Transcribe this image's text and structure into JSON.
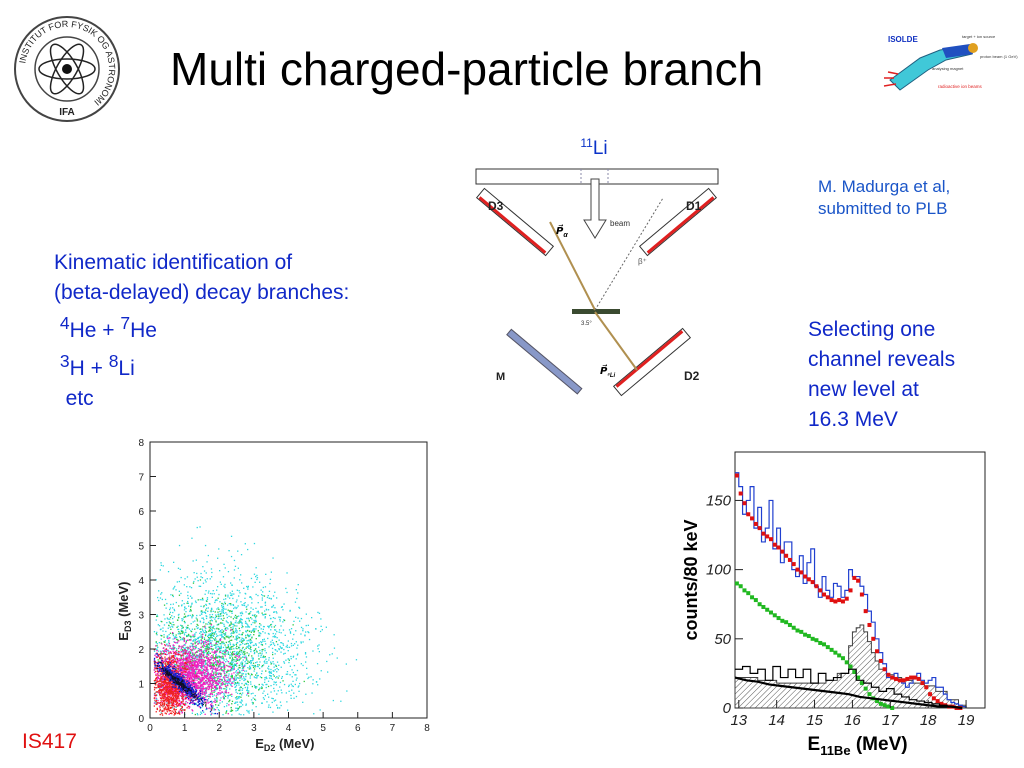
{
  "slide": {
    "title": "Multi charged-particle branch",
    "logo_left_text": "INSTITUT FOR FYSIK OG ASTRONOMI",
    "logo_left_abbrev": "IFA",
    "logo_right": {
      "title": "ISOLDE",
      "labels": [
        "target + ion source",
        "analysing magnet",
        "proton beam (1 GeV)",
        "radioactive ion beams"
      ]
    },
    "citation": [
      "M. Madurga et al,",
      "submitted to PLB"
    ],
    "kinematic": {
      "line1": "Kinematic identification of",
      "line2": "(beta-delayed) decay branches:",
      "branch1": {
        "m1": "4",
        "e1": "He + ",
        "m2": "7",
        "e2": "He"
      },
      "branch2": {
        "m1": "3",
        "e1": "H + ",
        "m2": "8",
        "e2": "Li"
      },
      "etc": "etc"
    },
    "selecting": [
      "Selecting one",
      "channel reveals",
      "new level at",
      "16.3 MeV"
    ],
    "experiment_id": "IS417"
  },
  "setup": {
    "beam_nucleus_mass": "11",
    "beam_nucleus_element": "Li",
    "detectors": [
      "D3",
      "D1",
      "M",
      "D2"
    ],
    "beam_label": "beam",
    "p_alpha": "P⃗",
    "p_alpha_sub": "α",
    "p_li": "P⃗",
    "p_li_sub": "⁸Li",
    "beta_label": "β⁺",
    "angle_label": "3.5°"
  },
  "chart_data": [
    {
      "type": "scatter",
      "xlabel": "E",
      "xlabel_sub": "D2",
      "xlabel_unit": "(MeV)",
      "ylabel": "E",
      "ylabel_sub": "D3",
      "ylabel_unit": "(MeV)",
      "xlim": [
        0,
        8
      ],
      "ylim": [
        0,
        8
      ],
      "xticks": [
        "0",
        "1",
        "2",
        "3",
        "4",
        "5",
        "6",
        "7",
        "8"
      ],
      "yticks": [
        "0",
        "1",
        "2",
        "3",
        "4",
        "5",
        "6",
        "7",
        "8"
      ],
      "colors": {
        "cyan": "#2ed8e0",
        "green": "#30c840",
        "magenta": "#f020c0",
        "red": "#f02020",
        "blue": "#1020d0",
        "black": "#101020"
      },
      "clusters": [
        {
          "color": "cyan",
          "cx": 2.0,
          "cy": 1.9,
          "sx": 1.25,
          "sy": 1.1,
          "n": 2400
        },
        {
          "color": "green",
          "cx": 1.7,
          "cy": 1.8,
          "sx": 0.8,
          "sy": 0.75,
          "n": 700
        },
        {
          "color": "magenta",
          "cx": 1.1,
          "cy": 1.25,
          "sx": 0.55,
          "sy": 0.45,
          "n": 1700
        },
        {
          "color": "red",
          "cx": 0.55,
          "cy": 0.9,
          "sx": 0.25,
          "sy": 0.45,
          "n": 900
        },
        {
          "color": "blue",
          "cx": 0.85,
          "cy": 1.05,
          "sx": 0.35,
          "sy": 0.12,
          "n": 500,
          "diag": true
        },
        {
          "color": "black",
          "cx": 0.75,
          "cy": 1.1,
          "sx": 0.3,
          "sy": 0.06,
          "n": 160,
          "diag": true
        }
      ]
    },
    {
      "type": "line",
      "xlabel": "E",
      "xlabel_sub": "11Be",
      "xlabel_unit": "(MeV)",
      "ylabel": "counts/80 keV",
      "xlim": [
        12.9,
        19.5
      ],
      "ylim": [
        0,
        185
      ],
      "xticks": [
        "13",
        "14",
        "15",
        "16",
        "17",
        "18",
        "19"
      ],
      "yticks": [
        "0",
        "50",
        "100",
        "150"
      ],
      "series": [
        {
          "color": "#2040d0",
          "style": "step",
          "x": [
            12.9,
            13.0,
            13.1,
            13.2,
            13.3,
            13.4,
            13.5,
            13.6,
            13.7,
            13.8,
            13.9,
            14.0,
            14.1,
            14.2,
            14.3,
            14.4,
            14.5,
            14.6,
            14.7,
            14.8,
            14.9,
            15.0,
            15.1,
            15.2,
            15.3,
            15.4,
            15.5,
            15.6,
            15.7,
            15.8,
            15.9,
            16.0,
            16.1,
            16.2,
            16.3,
            16.4,
            16.5,
            16.6,
            16.7,
            16.8,
            16.9,
            17.0,
            17.1,
            17.2,
            17.3,
            17.4,
            17.5,
            17.6,
            17.7,
            17.8,
            17.9,
            18.0,
            18.1,
            18.2,
            18.3,
            18.4,
            18.5,
            18.6,
            18.7,
            18.8,
            18.9,
            19.0
          ],
          "y": [
            170,
            160,
            140,
            150,
            160,
            130,
            145,
            120,
            130,
            150,
            115,
            130,
            105,
            120,
            120,
            100,
            95,
            110,
            90,
            105,
            115,
            88,
            80,
            95,
            85,
            80,
            90,
            88,
            80,
            85,
            100,
            95,
            95,
            88,
            82,
            70,
            62,
            50,
            40,
            32,
            22,
            22,
            25,
            20,
            18,
            15,
            18,
            22,
            25,
            20,
            18,
            20,
            22,
            15,
            15,
            10,
            6,
            4,
            3,
            2,
            1,
            0
          ]
        },
        {
          "color": "#e01010",
          "style": "points",
          "x": [
            12.95,
            13.05,
            13.15,
            13.25,
            13.35,
            13.45,
            13.55,
            13.65,
            13.75,
            13.85,
            13.95,
            14.05,
            14.15,
            14.25,
            14.35,
            14.45,
            14.55,
            14.65,
            14.75,
            14.85,
            14.95,
            15.05,
            15.15,
            15.25,
            15.35,
            15.45,
            15.55,
            15.65,
            15.75,
            15.85,
            15.95,
            16.05,
            16.15,
            16.25,
            16.35,
            16.45,
            16.55,
            16.65,
            16.75,
            16.85,
            16.95,
            17.05,
            17.15,
            17.25,
            17.35,
            17.45,
            17.55,
            17.65,
            17.75,
            17.85,
            17.95,
            18.05,
            18.15,
            18.25,
            18.35,
            18.45,
            18.55,
            18.65,
            18.75,
            18.85
          ],
          "y": [
            168,
            155,
            148,
            140,
            137,
            133,
            130,
            126,
            124,
            122,
            118,
            116,
            113,
            110,
            107,
            104,
            100,
            98,
            95,
            93,
            91,
            88,
            85,
            82,
            80,
            78,
            77,
            78,
            77,
            79,
            85,
            94,
            92,
            82,
            70,
            60,
            50,
            41,
            34,
            28,
            24,
            22,
            21,
            20,
            20,
            21,
            22,
            22,
            21,
            18,
            15,
            10,
            7,
            5,
            3,
            2,
            1,
            1,
            0,
            0
          ]
        },
        {
          "color": "#20b820",
          "style": "points",
          "x": [
            12.95,
            13.05,
            13.15,
            13.25,
            13.35,
            13.45,
            13.55,
            13.65,
            13.75,
            13.85,
            13.95,
            14.05,
            14.15,
            14.25,
            14.35,
            14.45,
            14.55,
            14.65,
            14.75,
            14.85,
            14.95,
            15.05,
            15.15,
            15.25,
            15.35,
            15.45,
            15.55,
            15.65,
            15.75,
            15.85,
            15.95,
            16.05,
            16.15,
            16.25,
            16.35,
            16.45,
            16.55,
            16.65,
            16.75,
            16.85,
            16.95,
            17.05
          ],
          "y": [
            90,
            88,
            85,
            83,
            80,
            78,
            75,
            73,
            71,
            69,
            67,
            65,
            63,
            62,
            60,
            58,
            56,
            55,
            53,
            52,
            50,
            49,
            47,
            46,
            44,
            42,
            40,
            38,
            36,
            33,
            30,
            26,
            22,
            18,
            14,
            10,
            7,
            5,
            3,
            2,
            1,
            0
          ]
        },
        {
          "color": "#000000",
          "style": "step",
          "x": [
            12.9,
            13.1,
            13.3,
            13.5,
            13.7,
            13.9,
            14.1,
            14.3,
            14.5,
            14.7,
            14.9,
            15.1,
            15.3,
            15.5,
            15.7,
            15.9,
            16.1,
            16.3,
            16.5,
            16.7,
            16.9,
            17.1,
            17.3,
            17.5,
            17.7,
            17.9,
            18.1,
            18.3,
            18.5,
            18.7
          ],
          "y": [
            28,
            30,
            25,
            28,
            20,
            30,
            22,
            28,
            22,
            28,
            18,
            25,
            20,
            22,
            25,
            28,
            20,
            18,
            15,
            12,
            14,
            10,
            8,
            6,
            5,
            4,
            3,
            2,
            1,
            0
          ]
        },
        {
          "color": "#000000",
          "style": "line",
          "x": [
            12.9,
            13.2,
            13.5,
            13.8,
            14.1,
            14.4,
            14.7,
            15.0,
            15.3,
            15.6,
            15.9,
            16.2,
            16.5,
            16.8,
            17.1,
            17.4,
            17.7,
            18.0,
            18.3,
            18.6,
            18.9
          ],
          "y": [
            22,
            20,
            19,
            17,
            16,
            15,
            14,
            13,
            12,
            11,
            10,
            8,
            7,
            6,
            5,
            4,
            3,
            2,
            1,
            1,
            0
          ]
        }
      ],
      "hatched": [
        {
          "color": "#404040",
          "x": [
            12.9,
            13.5,
            14.0,
            14.5,
            15.0,
            15.3,
            15.6,
            15.9,
            16.0,
            16.1,
            16.2,
            16.3,
            16.4,
            16.5,
            16.6,
            16.7,
            16.9,
            17.1,
            17.3,
            17.6,
            17.9,
            18.2,
            18.5,
            18.8,
            19.0
          ],
          "y": [
            22,
            20,
            18,
            18,
            18,
            20,
            25,
            45,
            55,
            58,
            60,
            55,
            48,
            40,
            34,
            28,
            24,
            22,
            20,
            18,
            16,
            12,
            6,
            2,
            0
          ]
        }
      ]
    }
  ]
}
